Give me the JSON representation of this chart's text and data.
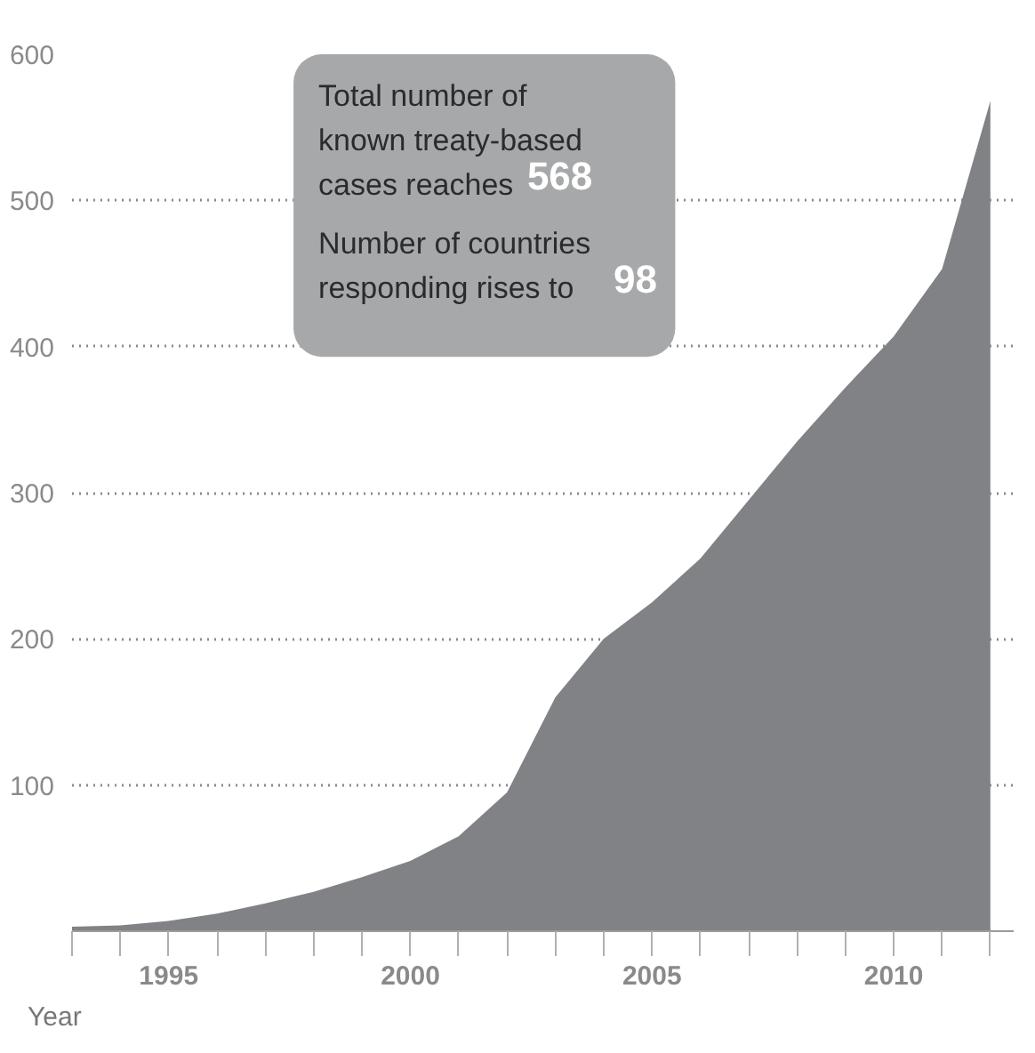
{
  "chart_data": {
    "type": "area",
    "xlabel": "Year",
    "x": [
      1993,
      1994,
      1995,
      1996,
      1997,
      1998,
      1999,
      2000,
      2001,
      2002,
      2003,
      2004,
      2005,
      2006,
      2007,
      2008,
      2009,
      2010,
      2011,
      2012
    ],
    "series": [
      {
        "color": "#818285",
        "values": [
          3,
          4,
          7,
          12,
          19,
          27,
          37,
          48,
          65,
          95,
          160,
          200,
          225,
          255,
          295,
          335,
          372,
          407,
          453,
          568
        ]
      }
    ],
    "xlim": [
      1993,
      2012.5
    ],
    "xticks": [
      {
        "value": 1993,
        "label": null
      },
      {
        "value": 1994,
        "label": null
      },
      1995,
      {
        "value": 1996,
        "label": null
      },
      {
        "value": 1997,
        "label": null
      },
      {
        "value": 1998,
        "label": null
      },
      {
        "value": 1999,
        "label": null
      },
      2000,
      {
        "value": 2001,
        "label": null
      },
      {
        "value": 2002,
        "label": null
      },
      {
        "value": 2003,
        "label": null
      },
      {
        "value": 2004,
        "label": null
      },
      2005,
      {
        "value": 2006,
        "label": null
      },
      {
        "value": 2007,
        "label": null
      },
      {
        "value": 2008,
        "label": null
      },
      {
        "value": 2009,
        "label": null
      },
      2010,
      {
        "value": 2011,
        "label": null
      },
      {
        "value": 2012,
        "label": null
      }
    ],
    "ylim": [
      0,
      600
    ],
    "yticks": [
      100,
      200,
      300,
      400,
      500,
      600
    ],
    "grid": "y",
    "annotations": [
      "Total number of\nknown treaty-based\ncases reaches 568",
      "Number of countries\nresponding rises to 98"
    ]
  }
}
